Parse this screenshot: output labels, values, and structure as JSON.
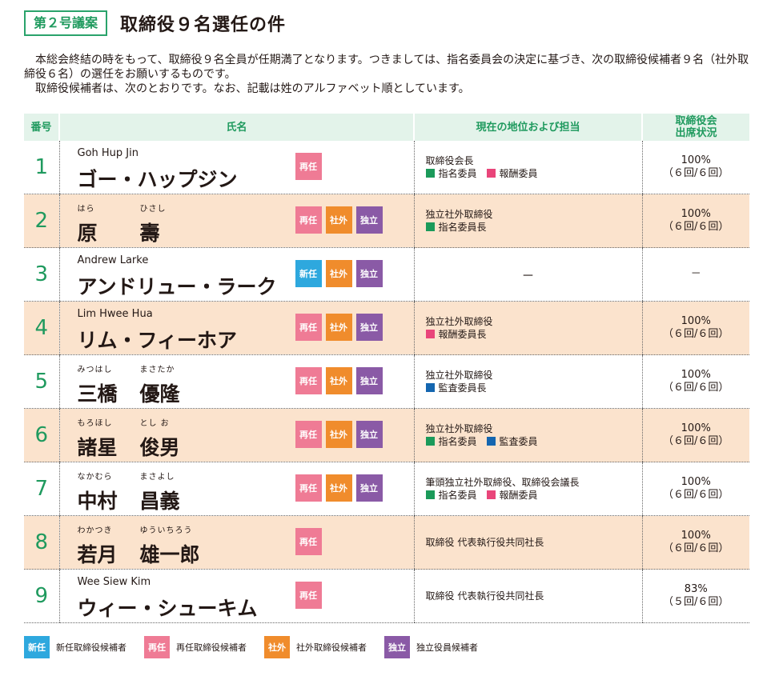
{
  "header": {
    "agenda_label": "第２号議案",
    "title": "取締役９名選任の件"
  },
  "intro": {
    "line1": "本総会終結の時をもって、取締役９名全員が任期満了となります。つきましては、指名委員会の決定に基づき、次の取締役候補者９名（社外取締役６名）の選任をお願いするものです。",
    "line2": "取締役候補者は、次のとおりです。なお、記載は姓のアルファベット順としています。"
  },
  "table": {
    "headers": {
      "number": "番号",
      "name": "氏名",
      "position": "現在の地位および担当",
      "attendance_line1": "取締役会",
      "attendance_line2": "出席状況"
    },
    "rows": [
      {
        "number": "1",
        "romaji": "Goh Hup Jin",
        "surname": "",
        "surname_furigana": "",
        "given": "",
        "given_furigana": "",
        "name": "ゴー・ハップジン",
        "tags": [
          {
            "type": "re",
            "label": "再任"
          }
        ],
        "position": "取締役会長",
        "roles": [
          {
            "color": "green",
            "label": "指名委員"
          },
          {
            "color": "pink",
            "label": "報酬委員"
          }
        ],
        "attendance_pct": "100%",
        "attendance_detail": "（６回/６回）"
      },
      {
        "number": "2",
        "romaji": "",
        "surname": "原",
        "surname_furigana": "はら",
        "given": "壽",
        "given_furigana": "ひさし",
        "name": "",
        "tags": [
          {
            "type": "re",
            "label": "再任"
          },
          {
            "type": "sha",
            "label": "社外"
          },
          {
            "type": "doku",
            "label": "独立"
          }
        ],
        "position": "独立社外取締役",
        "roles": [
          {
            "color": "green",
            "label": "指名委員長"
          }
        ],
        "attendance_pct": "100%",
        "attendance_detail": "（６回/６回）"
      },
      {
        "number": "3",
        "romaji": "Andrew Larke",
        "surname": "",
        "surname_furigana": "",
        "given": "",
        "given_furigana": "",
        "name": "アンドリュー・ラーク",
        "tags": [
          {
            "type": "shin",
            "label": "新任"
          },
          {
            "type": "sha",
            "label": "社外"
          },
          {
            "type": "doku",
            "label": "独立"
          }
        ],
        "position": "",
        "position_dash": "－",
        "roles": [],
        "attendance_pct": "－",
        "attendance_detail": ""
      },
      {
        "number": "4",
        "romaji": "Lim Hwee Hua",
        "surname": "",
        "surname_furigana": "",
        "given": "",
        "given_furigana": "",
        "name": "リム・フィーホア",
        "tags": [
          {
            "type": "re",
            "label": "再任"
          },
          {
            "type": "sha",
            "label": "社外"
          },
          {
            "type": "doku",
            "label": "独立"
          }
        ],
        "position": "独立社外取締役",
        "roles": [
          {
            "color": "pink",
            "label": "報酬委員長"
          }
        ],
        "attendance_pct": "100%",
        "attendance_detail": "（６回/６回）"
      },
      {
        "number": "5",
        "romaji": "",
        "surname": "三橋",
        "surname_furigana": "みつはし",
        "given": "優隆",
        "given_furigana": "まさたか",
        "name": "",
        "tags": [
          {
            "type": "re",
            "label": "再任"
          },
          {
            "type": "sha",
            "label": "社外"
          },
          {
            "type": "doku",
            "label": "独立"
          }
        ],
        "position": "独立社外取締役",
        "roles": [
          {
            "color": "blue",
            "label": "監査委員長"
          }
        ],
        "attendance_pct": "100%",
        "attendance_detail": "（６回/６回）"
      },
      {
        "number": "6",
        "romaji": "",
        "surname": "諸星",
        "surname_furigana": "もろほし",
        "given": "俊男",
        "given_furigana": "とし お",
        "name": "",
        "tags": [
          {
            "type": "re",
            "label": "再任"
          },
          {
            "type": "sha",
            "label": "社外"
          },
          {
            "type": "doku",
            "label": "独立"
          }
        ],
        "position": "独立社外取締役",
        "roles": [
          {
            "color": "green",
            "label": "指名委員"
          },
          {
            "color": "blue",
            "label": "監査委員"
          }
        ],
        "attendance_pct": "100%",
        "attendance_detail": "（６回/６回）"
      },
      {
        "number": "7",
        "romaji": "",
        "surname": "中村",
        "surname_furigana": "なかむら",
        "given": "昌義",
        "given_furigana": "まさよし",
        "name": "",
        "tags": [
          {
            "type": "re",
            "label": "再任"
          },
          {
            "type": "sha",
            "label": "社外"
          },
          {
            "type": "doku",
            "label": "独立"
          }
        ],
        "position": "筆頭独立社外取締役、取締役会議長",
        "roles": [
          {
            "color": "green",
            "label": "指名委員"
          },
          {
            "color": "pink",
            "label": "報酬委員"
          }
        ],
        "attendance_pct": "100%",
        "attendance_detail": "（６回/６回）"
      },
      {
        "number": "8",
        "romaji": "",
        "surname": "若月",
        "surname_furigana": "わかつき",
        "given": "雄一郎",
        "given_furigana": "ゆういちろう",
        "name": "",
        "tags": [
          {
            "type": "re",
            "label": "再任"
          }
        ],
        "position": "取締役 代表執行役共同社長",
        "roles": [],
        "attendance_pct": "100%",
        "attendance_detail": "（６回/６回）"
      },
      {
        "number": "9",
        "romaji": "Wee Siew Kim",
        "surname": "",
        "surname_furigana": "",
        "given": "",
        "given_furigana": "",
        "name": "ウィー・シューキム",
        "tags": [
          {
            "type": "re",
            "label": "再任"
          }
        ],
        "position": "取締役 代表執行役共同社長",
        "roles": [],
        "attendance_pct": "83%",
        "attendance_detail": "（５回/６回）"
      }
    ]
  },
  "legend": [
    {
      "type": "shin",
      "tag": "新任",
      "label": "新任取締役候補者"
    },
    {
      "type": "re",
      "tag": "再任",
      "label": "再任取締役候補者"
    },
    {
      "type": "sha",
      "tag": "社外",
      "label": "社外取締役候補者"
    },
    {
      "type": "doku",
      "tag": "独立",
      "label": "独立役員候補者"
    }
  ],
  "colors": {
    "accent_green": "#1f9a5e",
    "band_orange": "#fbe3cd",
    "tag_reappoint": "#ef7b95",
    "tag_outside": "#f08c2c",
    "tag_independent": "#8a5aa6",
    "tag_new": "#2ea8de"
  }
}
